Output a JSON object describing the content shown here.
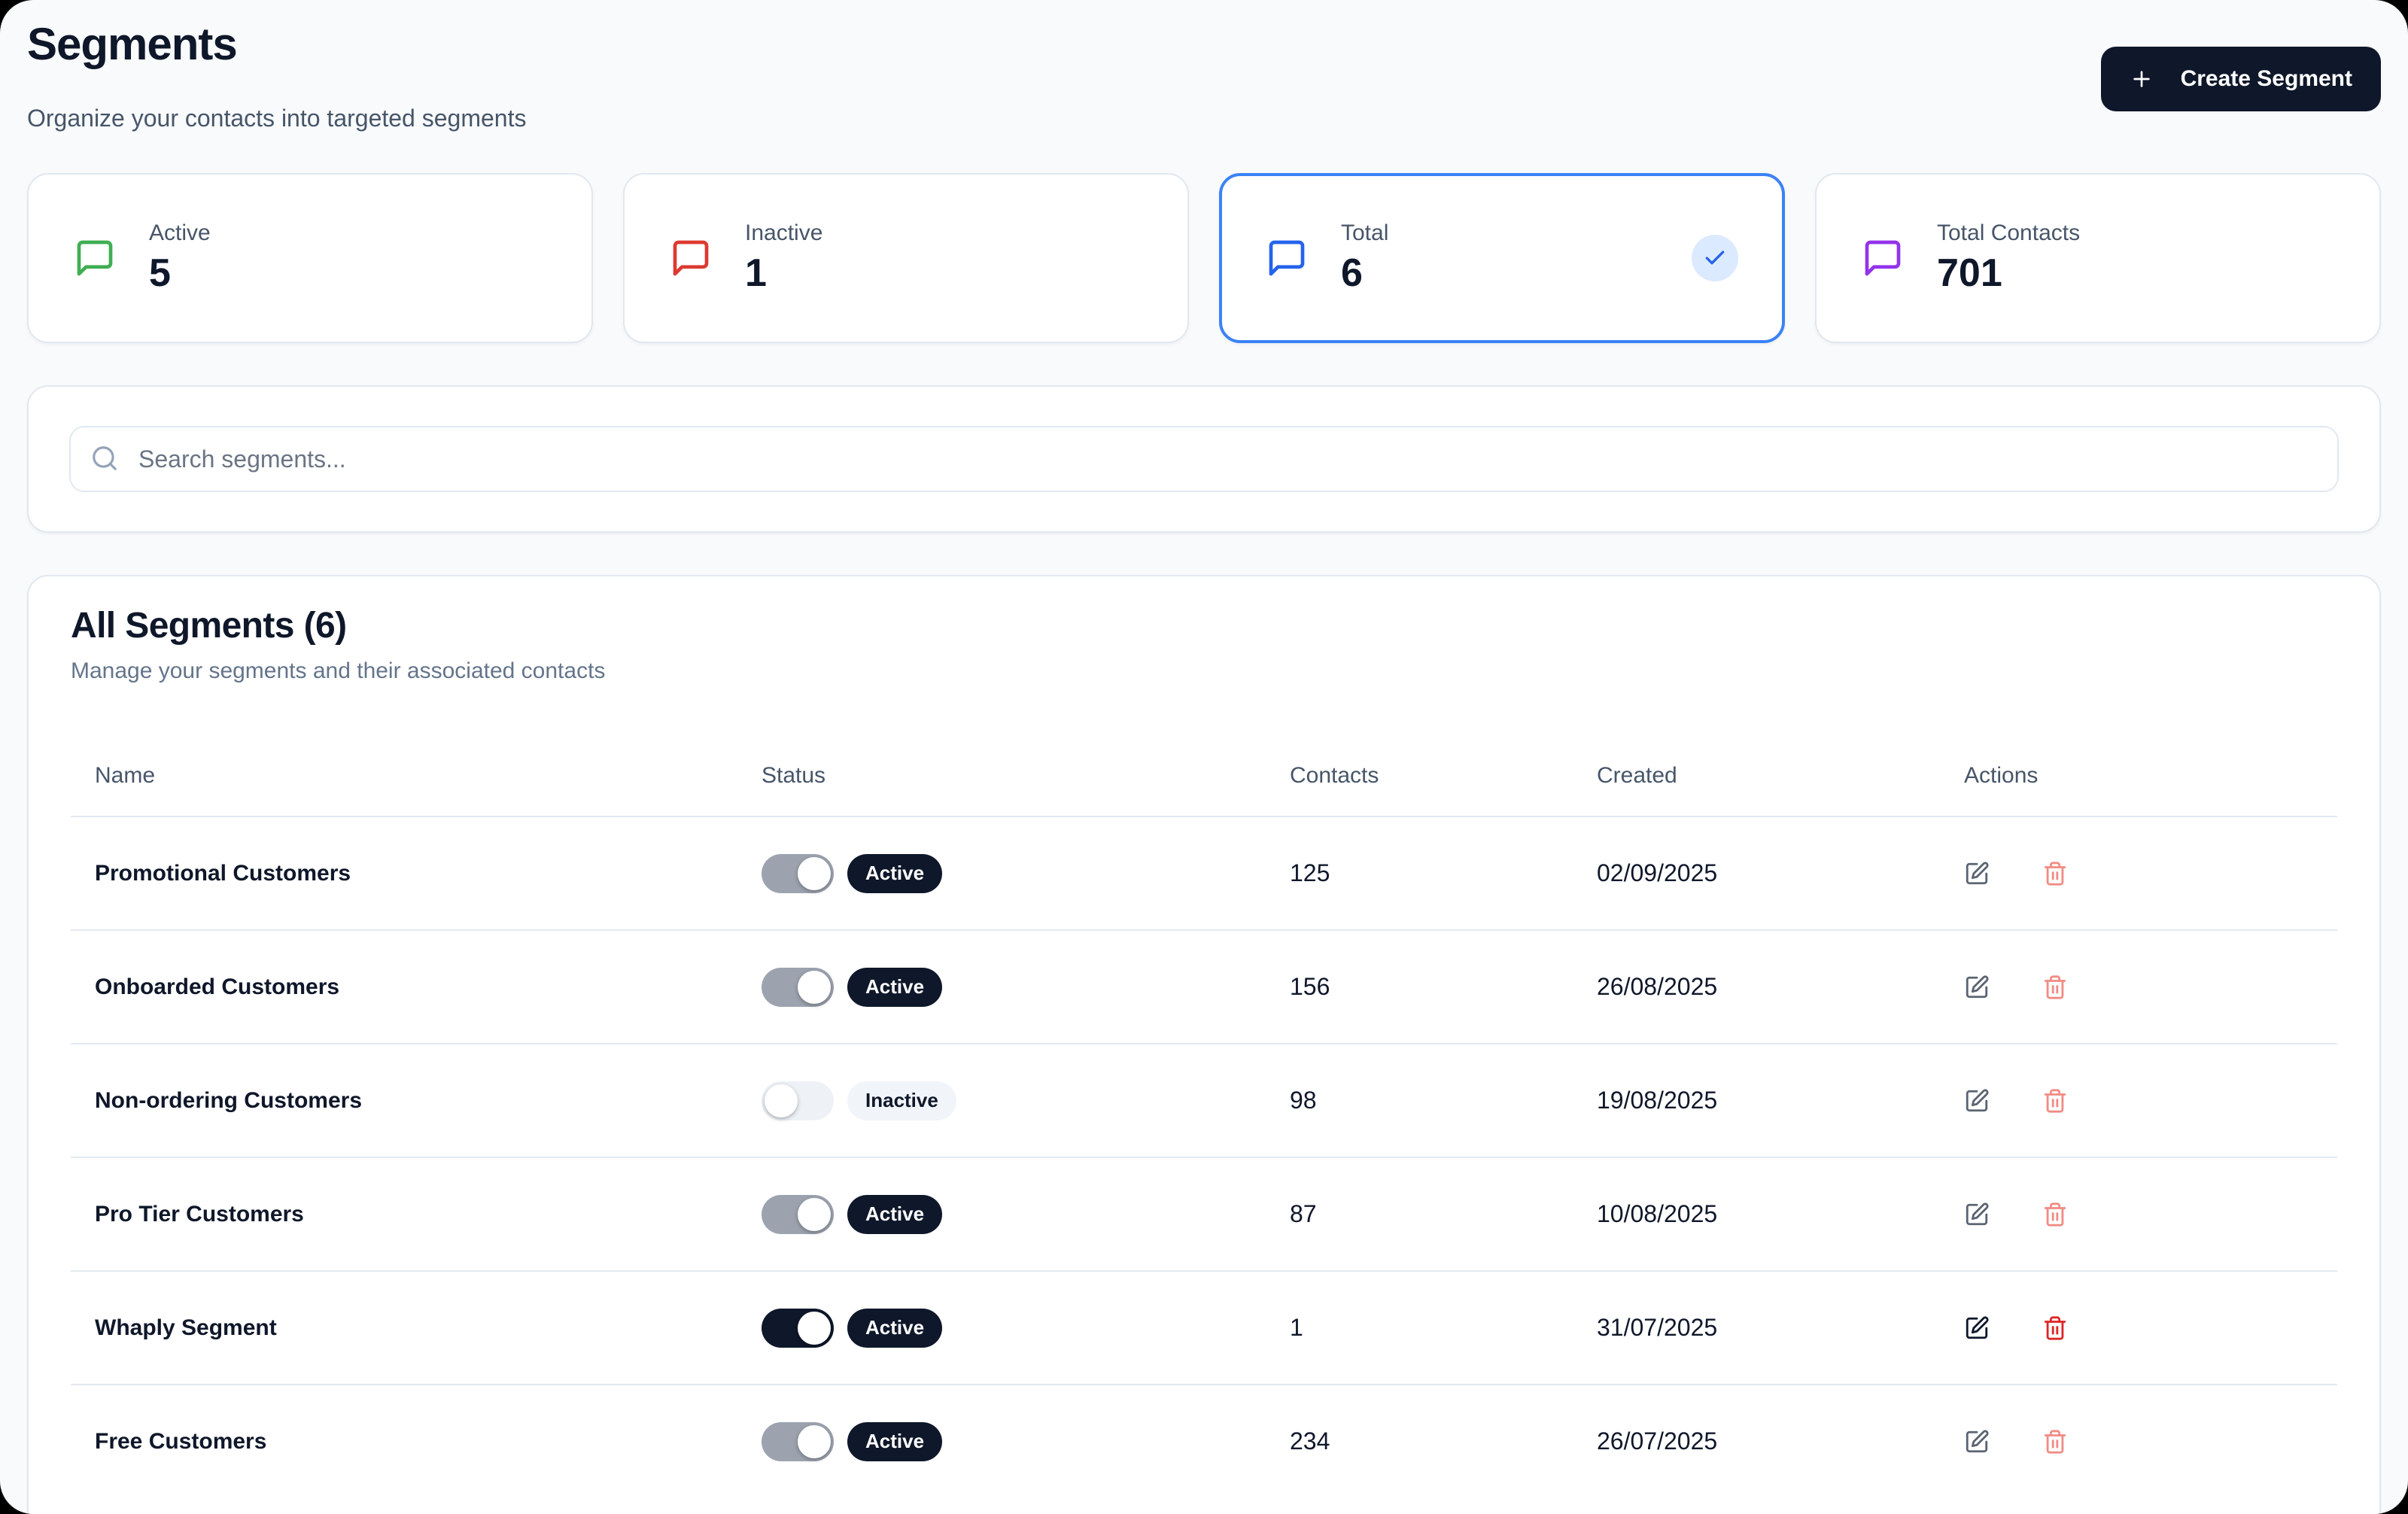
{
  "page": {
    "title": "Segments",
    "subtitle": "Organize your contacts into targeted segments"
  },
  "header": {
    "create_button": "Create Segment"
  },
  "stats": [
    {
      "label": "Active",
      "value": "5",
      "color": "#3fae52",
      "selected": false
    },
    {
      "label": "Inactive",
      "value": "1",
      "color": "#dc3a31",
      "selected": false
    },
    {
      "label": "Total",
      "value": "6",
      "color": "#2563eb",
      "selected": true
    },
    {
      "label": "Total Contacts",
      "value": "701",
      "color": "#9333ea",
      "selected": false
    }
  ],
  "selected_accent": "#3b82f6",
  "search": {
    "placeholder": "Search segments..."
  },
  "table": {
    "title": "All Segments (6)",
    "subtitle": "Manage your segments and their associated contacts",
    "columns": [
      "Name",
      "Status",
      "Contacts",
      "Created",
      "Actions"
    ],
    "status_labels": {
      "active": "Active",
      "inactive": "Inactive"
    },
    "rows": [
      {
        "name": "Promotional Customers",
        "status": "Active",
        "toggle": "on",
        "emphasis": false,
        "contacts": "125",
        "created": "02/09/2025"
      },
      {
        "name": "Onboarded Customers",
        "status": "Active",
        "toggle": "on",
        "emphasis": false,
        "contacts": "156",
        "created": "26/08/2025"
      },
      {
        "name": "Non-ordering Customers",
        "status": "Inactive",
        "toggle": "off",
        "emphasis": false,
        "contacts": "98",
        "created": "19/08/2025"
      },
      {
        "name": "Pro Tier Customers",
        "status": "Active",
        "toggle": "on",
        "emphasis": false,
        "contacts": "87",
        "created": "10/08/2025"
      },
      {
        "name": "Whaply Segment",
        "status": "Active",
        "toggle": "on",
        "emphasis": true,
        "contacts": "1",
        "created": "31/07/2025"
      },
      {
        "name": "Free Customers",
        "status": "Active",
        "toggle": "on",
        "emphasis": false,
        "contacts": "234",
        "created": "26/07/2025"
      }
    ]
  }
}
